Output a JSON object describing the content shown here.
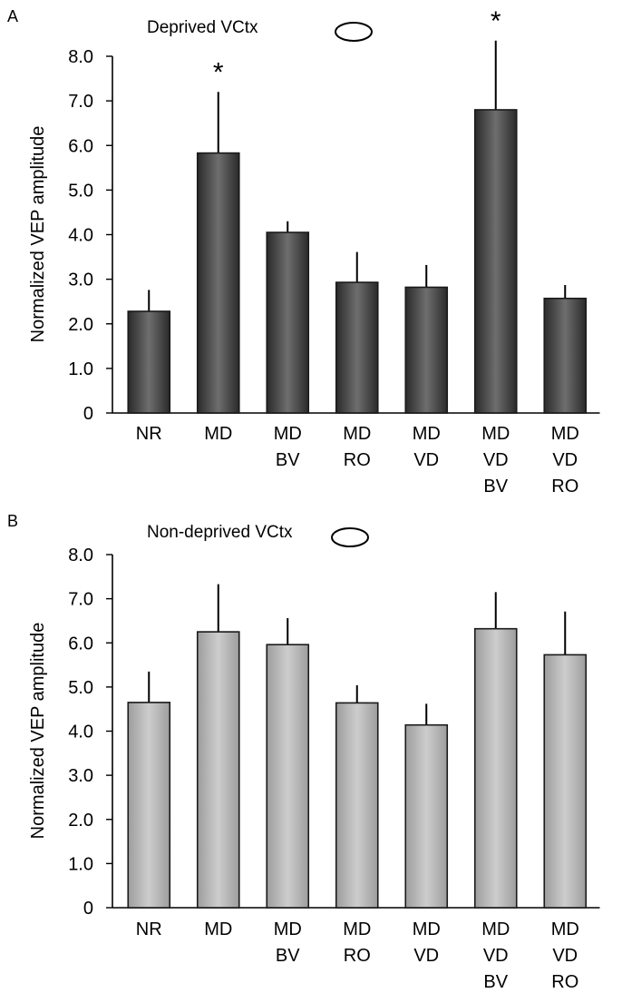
{
  "chart_data": [
    {
      "type": "bar",
      "panel_label": "A",
      "title": "Deprived VCtx",
      "ylabel": "Normalized VEP amplitude",
      "ylim": [
        0,
        8.0
      ],
      "yticks": [
        "0",
        "1.0",
        "2.0",
        "3.0",
        "4.0",
        "5.0",
        "6.0",
        "7.0",
        "8.0"
      ],
      "categories": [
        [
          "NR"
        ],
        [
          "MD"
        ],
        [
          "MD",
          "BV"
        ],
        [
          "MD",
          "RO"
        ],
        [
          "MD",
          "VD"
        ],
        [
          "MD",
          "VD",
          "BV"
        ],
        [
          "MD",
          "VD",
          "RO"
        ]
      ],
      "values": [
        2.28,
        5.83,
        4.05,
        2.93,
        2.82,
        6.8,
        2.57
      ],
      "errors": [
        0.48,
        1.37,
        0.25,
        0.68,
        0.5,
        1.55,
        0.3
      ],
      "significance": [
        "",
        "*",
        "",
        "",
        "",
        "*",
        ""
      ],
      "bar_color": "#4a4a4a",
      "bar_edge_color": "#1a1a1a",
      "legend_icon": "ellipse-outline-icon",
      "legend_fill": "#ffffff"
    },
    {
      "type": "bar",
      "panel_label": "B",
      "title": "Non-deprived VCtx",
      "ylabel": "Normalized VEP amplitude",
      "ylim": [
        0,
        8.0
      ],
      "yticks": [
        "0",
        "1.0",
        "2.0",
        "3.0",
        "4.0",
        "5.0",
        "6.0",
        "7.0",
        "8.0"
      ],
      "categories": [
        [
          "NR"
        ],
        [
          "MD"
        ],
        [
          "MD",
          "BV"
        ],
        [
          "MD",
          "RO"
        ],
        [
          "MD",
          "VD"
        ],
        [
          "MD",
          "VD",
          "BV"
        ],
        [
          "MD",
          "VD",
          "RO"
        ]
      ],
      "values": [
        4.65,
        6.25,
        5.96,
        4.64,
        4.14,
        6.32,
        5.73
      ],
      "errors": [
        0.7,
        1.08,
        0.6,
        0.4,
        0.48,
        0.83,
        0.98
      ],
      "significance": [
        "",
        "",
        "",
        "",
        "",
        "",
        ""
      ],
      "bar_color": "#b9b9b9",
      "bar_edge_color": "#1a1a1a",
      "legend_icon": "ellipse-outline-icon",
      "legend_fill": "#ffffff"
    }
  ]
}
